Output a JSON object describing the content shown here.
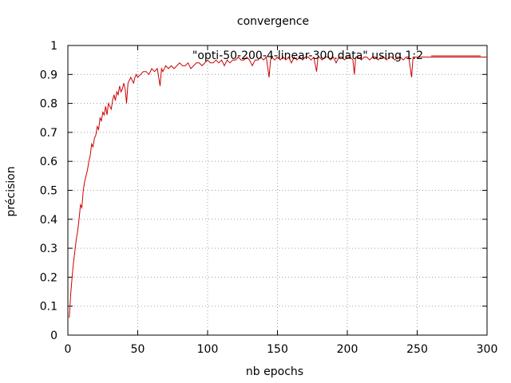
{
  "chart_data": {
    "type": "line",
    "title": "convergence",
    "xlabel": "nb epochs",
    "ylabel": "précision",
    "xlim": [
      0,
      300
    ],
    "ylim": [
      0,
      1
    ],
    "xticks": [
      0,
      50,
      100,
      150,
      200,
      250,
      300
    ],
    "yticks": [
      0,
      0.1,
      0.2,
      0.3,
      0.4,
      0.5,
      0.6,
      0.7,
      0.8,
      0.9,
      1
    ],
    "grid": true,
    "legend_position": "top-right",
    "series_color": "#cc0000",
    "series": [
      {
        "name": "\"opti-50-200-4-linear-300.data\" using 1:2",
        "points": [
          [
            1,
            0.06
          ],
          [
            2,
            0.14
          ],
          [
            3,
            0.2
          ],
          [
            4,
            0.25
          ],
          [
            5,
            0.29
          ],
          [
            6,
            0.33
          ],
          [
            7,
            0.36
          ],
          [
            8,
            0.4
          ],
          [
            9,
            0.45
          ],
          [
            10,
            0.44
          ],
          [
            11,
            0.5
          ],
          [
            12,
            0.53
          ],
          [
            13,
            0.55
          ],
          [
            14,
            0.57
          ],
          [
            15,
            0.6
          ],
          [
            16,
            0.62
          ],
          [
            17,
            0.66
          ],
          [
            18,
            0.65
          ],
          [
            19,
            0.68
          ],
          [
            20,
            0.69
          ],
          [
            21,
            0.72
          ],
          [
            22,
            0.71
          ],
          [
            23,
            0.75
          ],
          [
            24,
            0.74
          ],
          [
            25,
            0.77
          ],
          [
            26,
            0.76
          ],
          [
            27,
            0.79
          ],
          [
            28,
            0.76
          ],
          [
            29,
            0.8
          ],
          [
            30,
            0.79
          ],
          [
            31,
            0.78
          ],
          [
            32,
            0.81
          ],
          [
            33,
            0.83
          ],
          [
            34,
            0.81
          ],
          [
            35,
            0.84
          ],
          [
            36,
            0.83
          ],
          [
            37,
            0.86
          ],
          [
            38,
            0.84
          ],
          [
            39,
            0.85
          ],
          [
            40,
            0.87
          ],
          [
            41,
            0.85
          ],
          [
            42,
            0.8
          ],
          [
            43,
            0.87
          ],
          [
            44,
            0.88
          ],
          [
            45,
            0.89
          ],
          [
            46,
            0.88
          ],
          [
            47,
            0.87
          ],
          [
            48,
            0.89
          ],
          [
            49,
            0.9
          ],
          [
            50,
            0.89
          ],
          [
            52,
            0.9
          ],
          [
            54,
            0.91
          ],
          [
            56,
            0.91
          ],
          [
            58,
            0.9
          ],
          [
            60,
            0.92
          ],
          [
            62,
            0.91
          ],
          [
            64,
            0.92
          ],
          [
            66,
            0.86
          ],
          [
            67,
            0.92
          ],
          [
            68,
            0.91
          ],
          [
            70,
            0.93
          ],
          [
            72,
            0.92
          ],
          [
            74,
            0.93
          ],
          [
            76,
            0.92
          ],
          [
            78,
            0.93
          ],
          [
            80,
            0.94
          ],
          [
            82,
            0.93
          ],
          [
            84,
            0.93
          ],
          [
            86,
            0.94
          ],
          [
            88,
            0.92
          ],
          [
            90,
            0.93
          ],
          [
            92,
            0.94
          ],
          [
            94,
            0.94
          ],
          [
            96,
            0.93
          ],
          [
            98,
            0.94
          ],
          [
            100,
            0.95
          ],
          [
            102,
            0.94
          ],
          [
            104,
            0.94
          ],
          [
            106,
            0.95
          ],
          [
            108,
            0.94
          ],
          [
            110,
            0.95
          ],
          [
            112,
            0.93
          ],
          [
            114,
            0.95
          ],
          [
            116,
            0.94
          ],
          [
            118,
            0.95
          ],
          [
            120,
            0.95
          ],
          [
            122,
            0.96
          ],
          [
            124,
            0.95
          ],
          [
            126,
            0.95
          ],
          [
            128,
            0.96
          ],
          [
            130,
            0.95
          ],
          [
            132,
            0.93
          ],
          [
            134,
            0.95
          ],
          [
            136,
            0.95
          ],
          [
            138,
            0.96
          ],
          [
            140,
            0.95
          ],
          [
            142,
            0.96
          ],
          [
            144,
            0.89
          ],
          [
            145,
            0.95
          ],
          [
            146,
            0.96
          ],
          [
            148,
            0.95
          ],
          [
            150,
            0.96
          ],
          [
            152,
            0.95
          ],
          [
            154,
            0.96
          ],
          [
            156,
            0.95
          ],
          [
            158,
            0.96
          ],
          [
            160,
            0.94
          ],
          [
            162,
            0.96
          ],
          [
            164,
            0.95
          ],
          [
            166,
            0.96
          ],
          [
            168,
            0.95
          ],
          [
            170,
            0.96
          ],
          [
            172,
            0.96
          ],
          [
            174,
            0.95
          ],
          [
            176,
            0.96
          ],
          [
            178,
            0.91
          ],
          [
            179,
            0.96
          ],
          [
            180,
            0.96
          ],
          [
            182,
            0.95
          ],
          [
            184,
            0.96
          ],
          [
            186,
            0.96
          ],
          [
            188,
            0.95
          ],
          [
            190,
            0.96
          ],
          [
            192,
            0.94
          ],
          [
            194,
            0.96
          ],
          [
            196,
            0.96
          ],
          [
            198,
            0.95
          ],
          [
            200,
            0.96
          ],
          [
            202,
            0.96
          ],
          [
            204,
            0.95
          ],
          [
            205,
            0.9
          ],
          [
            206,
            0.96
          ],
          [
            208,
            0.96
          ],
          [
            210,
            0.95
          ],
          [
            212,
            0.96
          ],
          [
            214,
            0.96
          ],
          [
            216,
            0.95
          ],
          [
            218,
            0.96
          ],
          [
            220,
            0.96
          ],
          [
            222,
            0.95
          ],
          [
            224,
            0.96
          ],
          [
            226,
            0.96
          ],
          [
            228,
            0.95
          ],
          [
            230,
            0.96
          ],
          [
            232,
            0.96
          ],
          [
            234,
            0.95
          ],
          [
            236,
            0.96
          ],
          [
            238,
            0.96
          ],
          [
            240,
            0.95
          ],
          [
            242,
            0.96
          ],
          [
            244,
            0.96
          ],
          [
            246,
            0.89
          ],
          [
            247,
            0.96
          ],
          [
            248,
            0.96
          ],
          [
            250,
            0.96
          ],
          [
            255,
            0.96
          ],
          [
            260,
            0.96
          ],
          [
            265,
            0.96
          ],
          [
            270,
            0.96
          ],
          [
            275,
            0.96
          ],
          [
            280,
            0.96
          ],
          [
            285,
            0.96
          ],
          [
            290,
            0.96
          ],
          [
            295,
            0.96
          ],
          [
            300,
            0.96
          ]
        ]
      }
    ]
  }
}
